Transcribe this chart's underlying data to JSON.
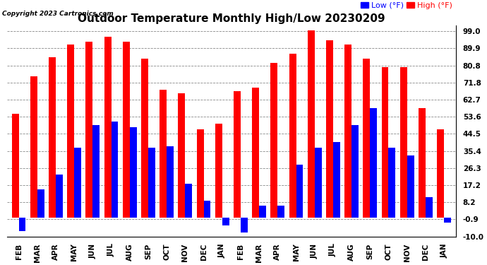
{
  "title": "Outdoor Temperature Monthly High/Low 20230209",
  "copyright": "Copyright 2023 Cartronics.com",
  "legend_low": "Low",
  "legend_high": "High",
  "legend_unit": "(°F)",
  "yticks": [
    99.0,
    89.9,
    80.8,
    71.8,
    62.7,
    53.6,
    44.5,
    35.4,
    26.3,
    17.2,
    8.2,
    -0.9,
    -10.0
  ],
  "ymin": -10.0,
  "ymax": 102.0,
  "categories": [
    "FEB",
    "MAR",
    "APR",
    "MAY",
    "JUN",
    "JUL",
    "AUG",
    "SEP",
    "OCT",
    "NOV",
    "DEC",
    "JAN",
    "FEB",
    "MAR",
    "APR",
    "MAY",
    "JUN",
    "JUL",
    "AUG",
    "SEP",
    "OCT",
    "NOV",
    "DEC",
    "JAN"
  ],
  "high_values": [
    55.0,
    75.0,
    85.0,
    92.0,
    93.5,
    96.0,
    93.5,
    84.5,
    68.0,
    66.0,
    47.0,
    50.0,
    67.0,
    69.0,
    82.0,
    87.0,
    99.5,
    94.0,
    92.0,
    84.5,
    80.0,
    80.0,
    58.0,
    47.0
  ],
  "low_values": [
    -7.0,
    15.0,
    23.0,
    37.0,
    49.0,
    51.0,
    48.0,
    37.0,
    38.0,
    18.0,
    9.0,
    -4.0,
    -8.0,
    6.5,
    6.5,
    28.0,
    37.0,
    40.0,
    49.0,
    58.0,
    37.0,
    33.0,
    11.0,
    -2.5
  ],
  "high_color": "#ff0000",
  "low_color": "#0000ff",
  "bg_color": "#ffffff",
  "grid_color": "#888888",
  "bar_width": 0.38,
  "title_fontsize": 11,
  "tick_fontsize": 7.5,
  "label_fontsize": 8
}
